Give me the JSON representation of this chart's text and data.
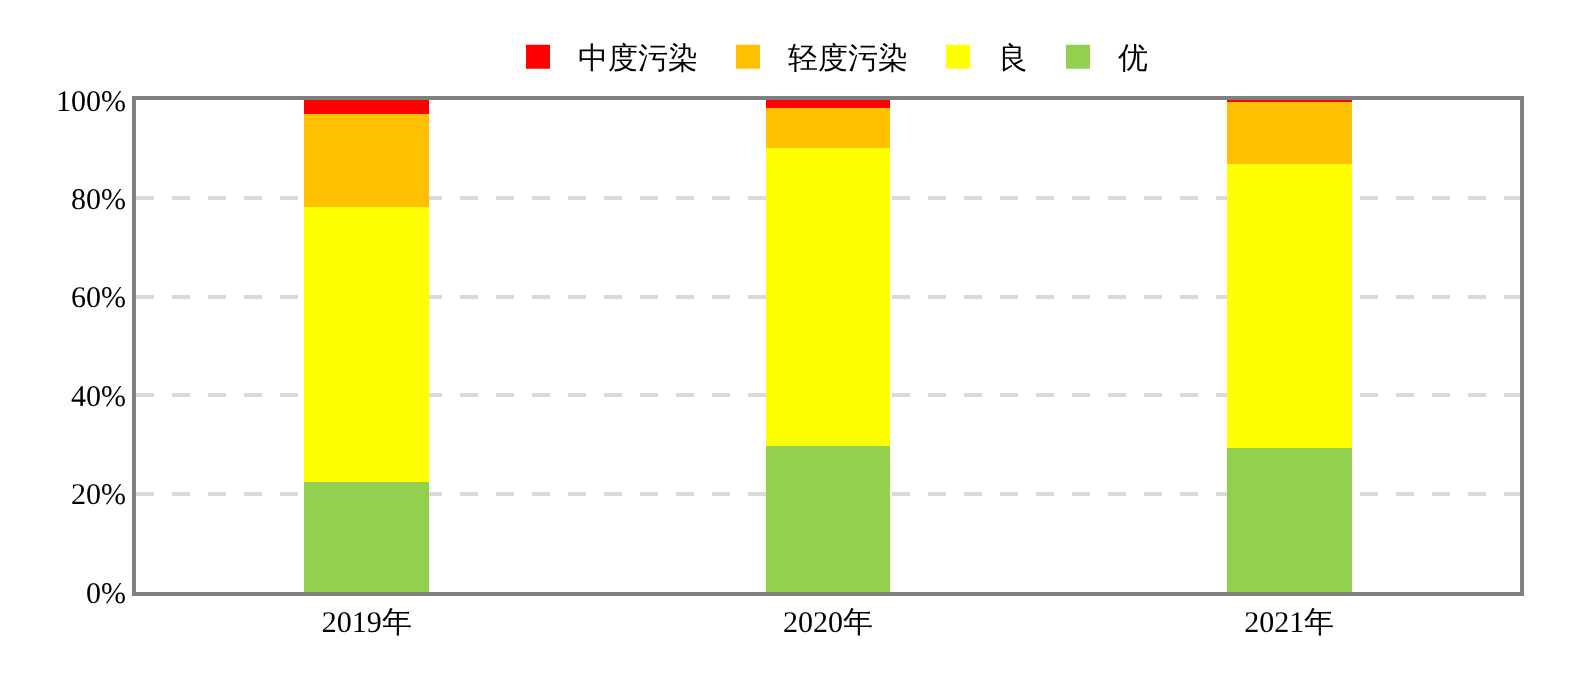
{
  "chart_data": {
    "type": "bar",
    "stacked": true,
    "categories": [
      "2019年",
      "2020年",
      "2021年"
    ],
    "series": [
      {
        "name": "优",
        "color": "#92d050",
        "values": [
          22.4,
          29.6,
          29.2
        ]
      },
      {
        "name": "良",
        "color": "#ffff00",
        "values": [
          55.8,
          60.6,
          57.8
        ]
      },
      {
        "name": "轻度污染",
        "color": "#ffc000",
        "values": [
          18.9,
          8.1,
          12.9
        ]
      },
      {
        "name": "中度污染",
        "color": "#ff0000",
        "values": [
          2.9,
          1.7,
          0.1
        ]
      }
    ],
    "ylim": [
      0,
      100
    ],
    "yticks": [
      {
        "value": 0,
        "label": "0%"
      },
      {
        "value": 20,
        "label": "20%"
      },
      {
        "value": 40,
        "label": "40%"
      },
      {
        "value": 60,
        "label": "60%"
      },
      {
        "value": 80,
        "label": "80%"
      },
      {
        "value": 100,
        "label": "100%"
      }
    ],
    "grid": "y",
    "legend": "top"
  }
}
